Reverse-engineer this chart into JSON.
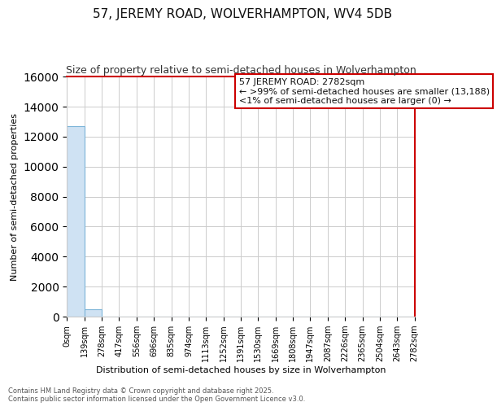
{
  "title": "57, JEREMY ROAD, WOLVERHAMPTON, WV4 5DB",
  "subtitle": "Size of property relative to semi-detached houses in Wolverhampton",
  "xlabel": "Distribution of semi-detached houses by size in Wolverhampton",
  "ylabel": "Number of semi-detached properties",
  "annotation_title": "57 JEREMY ROAD: 2782sqm",
  "annotation_line1": "← >99% of semi-detached houses are smaller (13,188)",
  "annotation_line2": "<1% of semi-detached houses are larger (0) →",
  "footer1": "Contains HM Land Registry data © Crown copyright and database right 2025.",
  "footer2": "Contains public sector information licensed under the Open Government Licence v3.0.",
  "bin_edges": [
    0,
    139,
    278,
    417,
    556,
    696,
    835,
    974,
    1113,
    1252,
    1391,
    1530,
    1669,
    1808,
    1947,
    2087,
    2226,
    2365,
    2504,
    2643,
    2782
  ],
  "bin_counts": [
    12700,
    500,
    0,
    0,
    0,
    0,
    0,
    0,
    0,
    0,
    0,
    0,
    0,
    0,
    0,
    0,
    0,
    0,
    0,
    0
  ],
  "bar_color": "#cfe2f3",
  "bar_edge_color": "#7cb4d8",
  "ylim": [
    0,
    16000
  ],
  "background_color": "#ffffff",
  "grid_color": "#cccccc",
  "annotation_box_color": "#cc0000",
  "title_fontsize": 11,
  "subtitle_fontsize": 9,
  "tick_label_fontsize": 7,
  "ylabel_fontsize": 8,
  "xlabel_fontsize": 8,
  "footer_fontsize": 6,
  "annotation_fontsize": 8
}
